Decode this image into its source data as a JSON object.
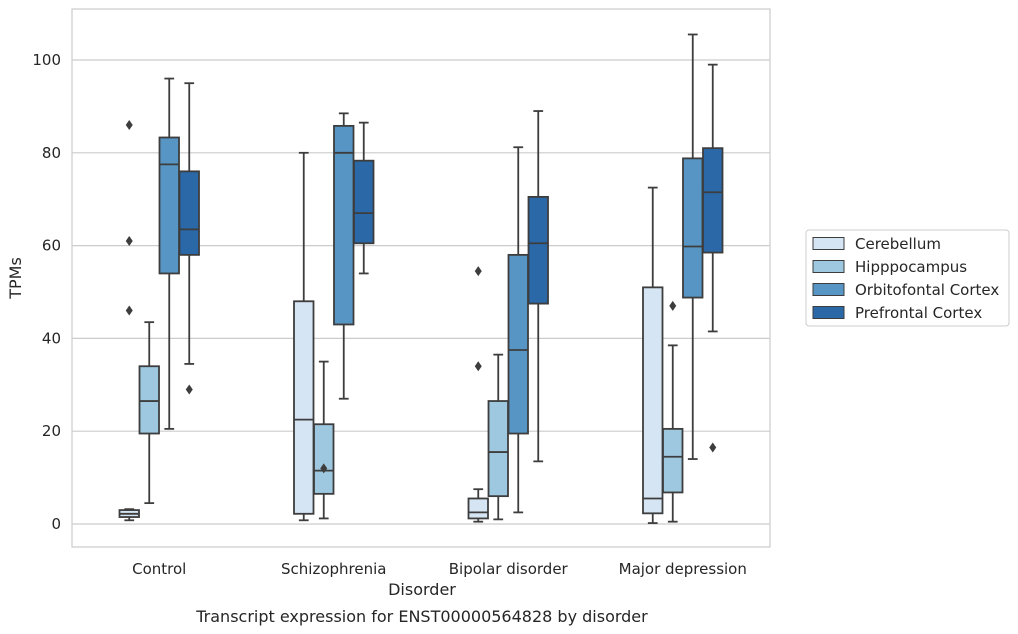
{
  "chart_data": {
    "type": "box",
    "caption": "Transcript expression for ENST00000564828 by disorder",
    "xlabel": "Disorder",
    "ylabel": "TPMs",
    "ylim": [
      -5,
      111
    ],
    "yticks": [
      0,
      20,
      40,
      60,
      80,
      100
    ],
    "grid": "horizontal",
    "legend_position": "right",
    "categories": [
      "Control",
      "Schizophrenia",
      "Bipolar disorder",
      "Major depression"
    ],
    "series": [
      {
        "name": "Cerebellum",
        "color": "#d6e5f4",
        "boxes": [
          {
            "whisker_low": 0.8,
            "q1": 1.5,
            "median": 2.2,
            "q3": 3.0,
            "whisker_high": 3.2,
            "outliers": [
              86.0,
              61.0,
              46.0
            ]
          },
          {
            "whisker_low": 0.8,
            "q1": 2.2,
            "median": 22.5,
            "q3": 48.0,
            "whisker_high": 80.0,
            "outliers": []
          },
          {
            "whisker_low": 0.5,
            "q1": 1.2,
            "median": 2.5,
            "q3": 5.5,
            "whisker_high": 7.5,
            "outliers": [
              54.5,
              34.0
            ]
          },
          {
            "whisker_low": 0.2,
            "q1": 2.3,
            "median": 5.5,
            "q3": 51.0,
            "whisker_high": 72.5,
            "outliers": []
          }
        ]
      },
      {
        "name": "Hipppocampus",
        "color": "#9ec8e0",
        "boxes": [
          {
            "whisker_low": 4.5,
            "q1": 19.5,
            "median": 26.5,
            "q3": 34.0,
            "whisker_high": 43.5,
            "outliers": []
          },
          {
            "whisker_low": 1.2,
            "q1": 6.5,
            "median": 11.5,
            "q3": 21.5,
            "whisker_high": 35.0,
            "outliers": [
              12.0
            ]
          },
          {
            "whisker_low": 1.0,
            "q1": 6.0,
            "median": 15.5,
            "q3": 26.5,
            "whisker_high": 36.5,
            "outliers": []
          },
          {
            "whisker_low": 0.5,
            "q1": 6.8,
            "median": 14.5,
            "q3": 20.5,
            "whisker_high": 38.5,
            "outliers": [
              47.0
            ]
          }
        ]
      },
      {
        "name": "Orbitofontal Cortex",
        "color": "#5796c4",
        "boxes": [
          {
            "whisker_low": 20.5,
            "q1": 54.0,
            "median": 77.5,
            "q3": 83.3,
            "whisker_high": 96.0,
            "outliers": []
          },
          {
            "whisker_low": 27.0,
            "q1": 43.0,
            "median": 80.0,
            "q3": 85.8,
            "whisker_high": 88.5,
            "outliers": []
          },
          {
            "whisker_low": 2.5,
            "q1": 19.5,
            "median": 37.5,
            "q3": 58.0,
            "whisker_high": 81.2,
            "outliers": []
          },
          {
            "whisker_low": 14.0,
            "q1": 48.8,
            "median": 59.8,
            "q3": 78.8,
            "whisker_high": 105.5,
            "outliers": []
          }
        ]
      },
      {
        "name": "Prefrontal Cortex",
        "color": "#2a68a8",
        "boxes": [
          {
            "whisker_low": 34.5,
            "q1": 58.0,
            "median": 63.5,
            "q3": 76.0,
            "whisker_high": 95.0,
            "outliers": [
              29.0
            ]
          },
          {
            "whisker_low": 54.0,
            "q1": 60.5,
            "median": 67.0,
            "q3": 78.3,
            "whisker_high": 86.5,
            "outliers": []
          },
          {
            "whisker_low": 13.5,
            "q1": 47.5,
            "median": 60.5,
            "q3": 70.5,
            "whisker_high": 89.0,
            "outliers": []
          },
          {
            "whisker_low": 41.5,
            "q1": 58.5,
            "median": 71.5,
            "q3": 81.0,
            "whisker_high": 99.0,
            "outliers": [
              16.5
            ]
          }
        ]
      }
    ]
  }
}
